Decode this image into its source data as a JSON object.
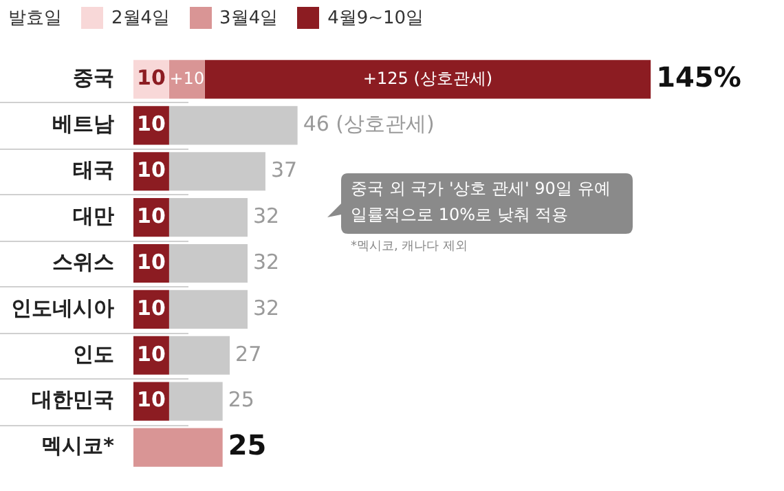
{
  "chart_data": {
    "type": "bar",
    "orientation": "horizontal",
    "stacked": true,
    "categories": [
      "중국",
      "베트남",
      "태국",
      "대만",
      "스위스",
      "인도네시아",
      "인도",
      "대한민국",
      "멕시코*"
    ],
    "legend_title": "발효일",
    "legend": "top left",
    "series": [
      {
        "name": "2월4일",
        "color": "#f8d8d8",
        "values": [
          10,
          null,
          null,
          null,
          null,
          null,
          null,
          null,
          null
        ],
        "value_labels": [
          "10",
          null,
          null,
          null,
          null,
          null,
          null,
          null,
          null
        ]
      },
      {
        "name": "3월4일",
        "color": "#d99595",
        "values": [
          10,
          null,
          null,
          null,
          null,
          null,
          null,
          null,
          25
        ],
        "value_labels": [
          "+10",
          null,
          null,
          null,
          null,
          null,
          null,
          null,
          null
        ]
      },
      {
        "name": "4월9~10일",
        "color": "#8c1c22",
        "values": [
          125,
          10,
          10,
          10,
          10,
          10,
          10,
          10,
          null
        ],
        "value_labels": [
          "+125 (상호관세)",
          "10",
          "10",
          "10",
          "10",
          "10",
          "10",
          "10",
          null
        ]
      },
      {
        "color": "#c9c9c9",
        "values": [
          null,
          36,
          27,
          22,
          22,
          22,
          17,
          15,
          null
        ]
      }
    ],
    "totals": [
      "145%",
      "46 (상호관세)",
      "37",
      "32",
      "32",
      "32",
      "27",
      "25",
      "25"
    ],
    "tick_labels": "y",
    "annotations": [
      "중국 외 국가 '상호 관세' 90일 유예\n일률적으로 10%로 낮춰 적용",
      "*멕시코, 캐나다 제외"
    ]
  }
}
